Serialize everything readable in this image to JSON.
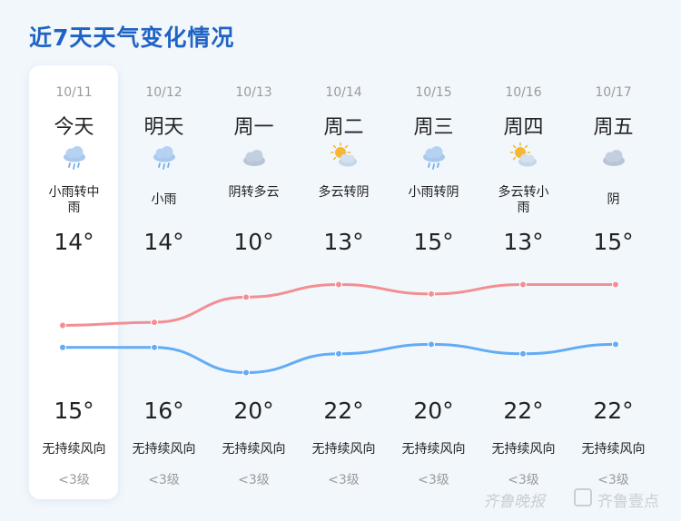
{
  "title": "近7天天气变化情况",
  "days": [
    {
      "date": "10/11",
      "name": "今天",
      "icon": "light-rain-cloud-icon",
      "desc": "小雨转中雨",
      "high": "14°",
      "low": "15°",
      "wind": "无持续风向",
      "level": "<3级"
    },
    {
      "date": "10/12",
      "name": "明天",
      "icon": "light-rain-cloud-icon",
      "desc": "小雨",
      "high": "14°",
      "low": "16°",
      "wind": "无持续风向",
      "level": "<3级"
    },
    {
      "date": "10/13",
      "name": "周一",
      "icon": "overcast-cloud-icon",
      "desc": "阴转多云",
      "high": "10°",
      "low": "20°",
      "wind": "无持续风向",
      "level": "<3级"
    },
    {
      "date": "10/14",
      "name": "周二",
      "icon": "partly-cloudy-sun-icon",
      "desc": "多云转阴",
      "high": "13°",
      "low": "22°",
      "wind": "无持续风向",
      "level": "<3级"
    },
    {
      "date": "10/15",
      "name": "周三",
      "icon": "light-rain-cloud-icon",
      "desc": "小雨转阴",
      "high": "15°",
      "low": "20°",
      "wind": "无持续风向",
      "level": "<3级"
    },
    {
      "date": "10/16",
      "name": "周四",
      "icon": "partly-cloudy-sun-icon",
      "desc": "多云转小雨",
      "high": "13°",
      "low": "22°",
      "wind": "无持续风向",
      "level": "<3级"
    },
    {
      "date": "10/17",
      "name": "周五",
      "icon": "overcast-cloud-icon",
      "desc": "阴",
      "high": "15°",
      "low": "22°",
      "wind": "无持续风向",
      "level": "<3级"
    }
  ],
  "trend": {
    "upper_values": [
      6,
      7,
      15,
      19,
      16,
      19,
      19
    ],
    "lower_values": [
      -1,
      -1,
      -9,
      -3,
      0,
      -3,
      0
    ],
    "upper_color": "#f28f93",
    "lower_color": "#63acf5"
  },
  "watermark": {
    "left": "齐鲁晚报",
    "right": "齐鲁壹点"
  }
}
